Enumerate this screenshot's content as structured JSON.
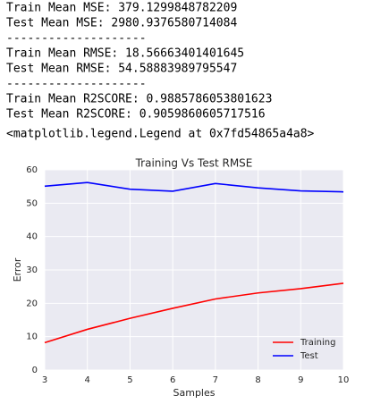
{
  "output_lines": [
    "Train Mean MSE: 379.1299848782209",
    "Test Mean MSE: 2980.9376580714084",
    "--------------------",
    "Train Mean RMSE: 18.56663401401645",
    "Test Mean RMSE: 54.58883989795547",
    "--------------------",
    "Train Mean R2SCORE: 0.9885786053801623",
    "Test Mean R2SCORE: 0.9059860605717516",
    "<matplotlib.legend.Legend at 0x7fd54865a4a8>"
  ],
  "chart_data": {
    "type": "line",
    "title": "Training Vs Test RMSE",
    "x_label": "Samples",
    "y_label": "Error",
    "x": [
      3,
      4,
      5,
      6,
      7,
      8,
      9,
      10
    ],
    "series": [
      {
        "name": "Training",
        "color": "#ff0000",
        "values": [
          8.2,
          12.2,
          15.5,
          18.5,
          21.3,
          23.1,
          24.4,
          26.0
        ]
      },
      {
        "name": "Test",
        "color": "#0000ff",
        "values": [
          55.1,
          56.2,
          54.2,
          53.6,
          55.9,
          54.6,
          53.7,
          53.4
        ]
      }
    ],
    "xlim": [
      3,
      10
    ],
    "xticks": [
      3,
      4,
      5,
      6,
      7,
      8,
      9,
      10
    ],
    "ylim": [
      0,
      60
    ],
    "yticks": [
      0,
      10,
      20,
      30,
      40,
      50,
      60
    ],
    "grid": true,
    "legend": "lower right"
  }
}
